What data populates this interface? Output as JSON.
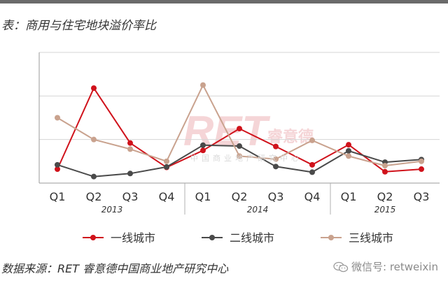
{
  "title": "表：商用与住宅地块溢价率比",
  "source": "数据来源：RET 睿意德中国商业地产研究中心",
  "watermark": {
    "logo_text": "RET",
    "logo_cn": "睿意德",
    "logo_sub": "中国商业地产研究中心",
    "wechat_label": "微信号: retweixin"
  },
  "chart_data": {
    "type": "line",
    "categories": [
      "Q1",
      "Q2",
      "Q3",
      "Q4",
      "Q1",
      "Q2",
      "Q3",
      "Q4",
      "Q1",
      "Q2",
      "Q3"
    ],
    "year_groups": [
      {
        "label": "2013",
        "start": 0,
        "end": 3
      },
      {
        "label": "2014",
        "start": 4,
        "end": 7
      },
      {
        "label": "2015",
        "start": 8,
        "end": 10
      }
    ],
    "ylim": [
      0,
      3
    ],
    "grid": "horizontal",
    "legend_position": "bottom",
    "series": [
      {
        "name": "一线城市",
        "color": "#d0121b",
        "values": [
          0.32,
          2.18,
          0.92,
          0.36,
          0.75,
          1.25,
          0.84,
          0.42,
          0.88,
          0.26,
          0.32
        ]
      },
      {
        "name": "二线城市",
        "color": "#4a4a4a",
        "values": [
          0.42,
          0.15,
          0.22,
          0.37,
          0.87,
          0.85,
          0.38,
          0.25,
          0.74,
          0.48,
          0.54
        ]
      },
      {
        "name": "三线城市",
        "color": "#c9a28e",
        "values": [
          1.5,
          1.0,
          0.78,
          0.5,
          2.25,
          0.62,
          0.55,
          0.98,
          0.62,
          0.4,
          0.5
        ]
      }
    ]
  }
}
